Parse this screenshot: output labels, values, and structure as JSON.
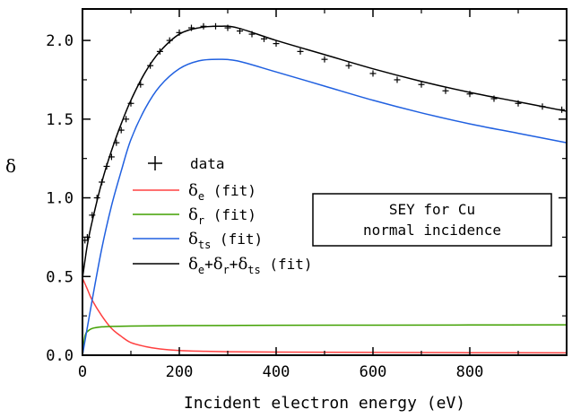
{
  "chart_data": {
    "type": "line",
    "title": "",
    "xlabel": "Incident electron energy (eV)",
    "ylabel": "δ",
    "xlim": [
      0,
      1000
    ],
    "ylim": [
      0,
      2.2
    ],
    "x_ticks": [
      0,
      200,
      400,
      600,
      800
    ],
    "x_tick_labels": [
      "0",
      "200",
      "400",
      "600",
      "800"
    ],
    "y_ticks": [
      0,
      0.5,
      1.0,
      1.5,
      2.0
    ],
    "y_tick_labels": [
      "0.0",
      "0.5",
      "1.0",
      "1.5",
      "2.0"
    ],
    "grid": false,
    "legend_placement": "center-left",
    "annotation": {
      "line1": "SEY for Cu",
      "line2": "normal incidence"
    },
    "legend": [
      {
        "series": "data",
        "symbol": "δ",
        "sub": "",
        "suffix": "data"
      },
      {
        "series": "delta_e",
        "symbol": "δ",
        "sub": "e",
        "suffix": " (fit)"
      },
      {
        "series": "delta_r",
        "symbol": "δ",
        "sub": "r",
        "suffix": " (fit)"
      },
      {
        "series": "delta_ts",
        "symbol": "δ",
        "sub": "ts",
        "suffix": " (fit)"
      },
      {
        "series": "total",
        "symbol": "δ",
        "sub": "",
        "suffix": " (fit)"
      }
    ],
    "legend_total_parts": [
      {
        "sym": "δ",
        "sub": "e",
        "plus": "+"
      },
      {
        "sym": "δ",
        "sub": "r",
        "plus": "+"
      },
      {
        "sym": "δ",
        "sub": "ts",
        "plus": ""
      }
    ],
    "legend_data_label": "data",
    "series": [
      {
        "key": "data",
        "kind": "markers",
        "color": "#000000",
        "x": [
          5,
          10,
          20,
          30,
          40,
          50,
          60,
          70,
          80,
          90,
          100,
          120,
          140,
          160,
          180,
          200,
          225,
          250,
          275,
          300,
          325,
          350,
          375,
          400,
          450,
          500,
          550,
          600,
          650,
          700,
          750,
          800,
          850,
          900,
          950,
          990
        ],
        "y": [
          0.73,
          0.75,
          0.89,
          1.0,
          1.1,
          1.2,
          1.26,
          1.35,
          1.43,
          1.5,
          1.6,
          1.72,
          1.84,
          1.93,
          2.0,
          2.05,
          2.08,
          2.09,
          2.09,
          2.08,
          2.06,
          2.04,
          2.01,
          1.98,
          1.93,
          1.88,
          1.84,
          1.79,
          1.75,
          1.72,
          1.68,
          1.66,
          1.63,
          1.6,
          1.58,
          1.56
        ]
      },
      {
        "key": "delta_e",
        "kind": "line",
        "color": "#ff4040",
        "x": [
          0,
          10,
          20,
          40,
          60,
          80,
          100,
          130,
          160,
          200,
          250,
          300,
          400,
          600,
          800,
          1000
        ],
        "y": [
          0.49,
          0.42,
          0.35,
          0.25,
          0.17,
          0.12,
          0.08,
          0.055,
          0.04,
          0.03,
          0.025,
          0.022,
          0.02,
          0.018,
          0.016,
          0.015
        ]
      },
      {
        "key": "delta_r",
        "kind": "line",
        "color": "#40a000",
        "x": [
          0,
          5,
          10,
          20,
          40,
          60,
          100,
          200,
          400,
          600,
          800,
          1000
        ],
        "y": [
          0.0,
          0.12,
          0.15,
          0.17,
          0.18,
          0.183,
          0.185,
          0.188,
          0.19,
          0.191,
          0.192,
          0.193
        ]
      },
      {
        "key": "delta_ts",
        "kind": "line",
        "color": "#2060e0",
        "x": [
          0,
          20,
          40,
          60,
          80,
          100,
          130,
          160,
          200,
          240,
          280,
          320,
          400,
          500,
          600,
          700,
          800,
          900,
          1000
        ],
        "y": [
          0.0,
          0.35,
          0.68,
          0.95,
          1.17,
          1.37,
          1.57,
          1.71,
          1.82,
          1.87,
          1.88,
          1.87,
          1.8,
          1.71,
          1.62,
          1.54,
          1.47,
          1.41,
          1.35
        ]
      },
      {
        "key": "total",
        "kind": "line",
        "color": "#000000",
        "x": [
          0,
          10,
          20,
          40,
          60,
          80,
          100,
          130,
          160,
          200,
          240,
          280,
          320,
          400,
          500,
          600,
          700,
          800,
          900,
          1000
        ],
        "y": [
          0.49,
          0.7,
          0.85,
          1.1,
          1.3,
          1.47,
          1.62,
          1.8,
          1.93,
          2.04,
          2.08,
          2.09,
          2.08,
          2.0,
          1.91,
          1.82,
          1.74,
          1.67,
          1.61,
          1.55
        ]
      }
    ]
  }
}
